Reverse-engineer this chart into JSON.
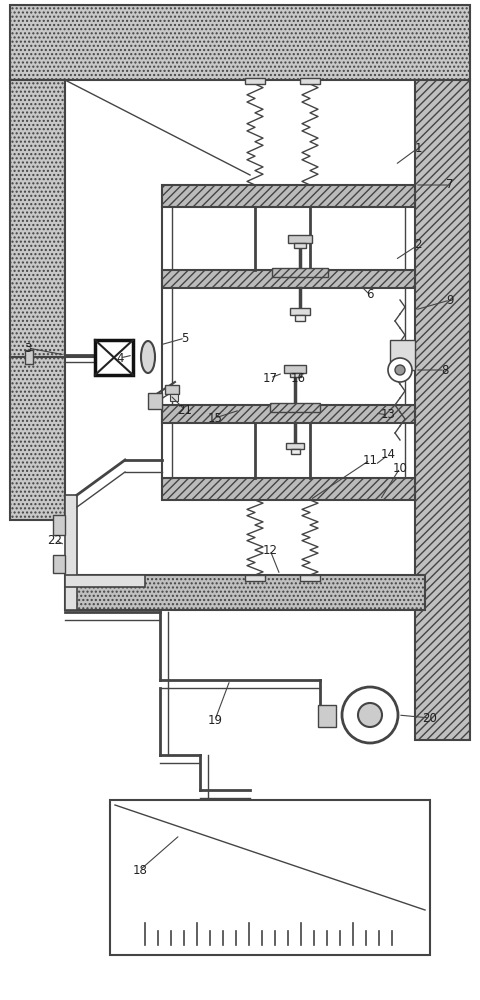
{
  "bg_color": "#ffffff",
  "lc": "#444444",
  "hc": "#aaaaaa",
  "fig_width": 4.8,
  "fig_height": 10.0,
  "dpi": 100,
  "labels": [
    [
      "1",
      418,
      148
    ],
    [
      "2",
      418,
      245
    ],
    [
      "3",
      28,
      348
    ],
    [
      "4",
      120,
      358
    ],
    [
      "5",
      185,
      338
    ],
    [
      "6",
      370,
      295
    ],
    [
      "7",
      450,
      185
    ],
    [
      "8",
      445,
      370
    ],
    [
      "9",
      450,
      300
    ],
    [
      "10",
      400,
      468
    ],
    [
      "11",
      370,
      460
    ],
    [
      "12",
      270,
      550
    ],
    [
      "13",
      388,
      415
    ],
    [
      "14",
      388,
      455
    ],
    [
      "15",
      215,
      418
    ],
    [
      "16",
      298,
      378
    ],
    [
      "17",
      270,
      378
    ],
    [
      "18",
      140,
      870
    ],
    [
      "19",
      215,
      720
    ],
    [
      "20",
      430,
      718
    ],
    [
      "21",
      185,
      410
    ],
    [
      "22",
      55,
      540
    ]
  ]
}
